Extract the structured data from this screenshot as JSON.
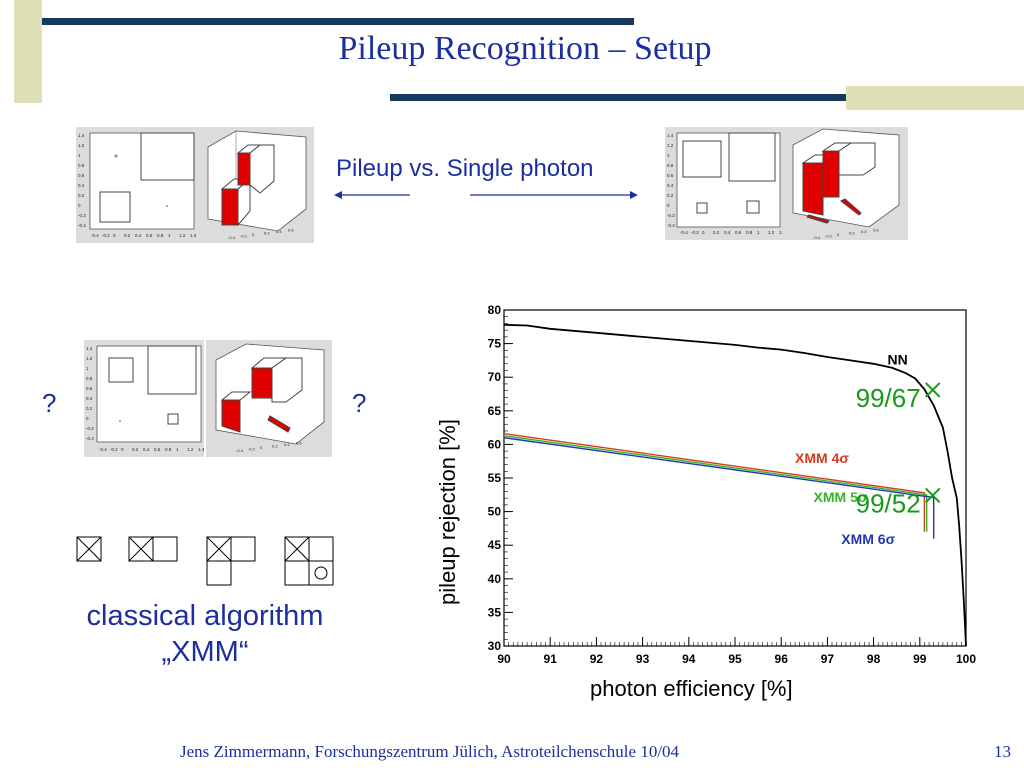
{
  "slide": {
    "title": "Pileup Recognition – Setup",
    "vs_label": "Pileup vs. Single photon",
    "question_left": "?",
    "question_right": "?",
    "classic_line1": "classical algorithm",
    "classic_line2": "„XMM“",
    "footer": "Jens Zimmermann, Forschungszentrum Jülich, Astroteilchenschule 10/04",
    "page_number": "13"
  },
  "colors": {
    "title_blue": "#1c2f9e",
    "bar_navy": "#17375e",
    "bar_khaki": "#e0e0b8"
  },
  "thumbs": {
    "x_ticks": [
      "-0.4",
      "-0.2",
      "0",
      "0.2",
      "0.4",
      "0.6",
      "0.8",
      "1",
      "1.2",
      "1.4"
    ],
    "y_ticks": [
      "1.4",
      "1.2",
      "1",
      "0.8",
      "0.6",
      "0.4",
      "0.2",
      "0",
      "-0.2",
      "-0.4"
    ]
  },
  "chart_data": {
    "type": "line",
    "xlabel": "photon efficiency [%]",
    "ylabel": "pileup rejection [%]",
    "xlim": [
      90,
      100
    ],
    "ylim": [
      30,
      80
    ],
    "x_ticks": [
      90,
      91,
      92,
      93,
      94,
      95,
      96,
      97,
      98,
      99,
      100
    ],
    "y_ticks": [
      30,
      35,
      40,
      45,
      50,
      55,
      60,
      65,
      70,
      75,
      80
    ],
    "grid": false,
    "series": [
      {
        "name": "NN",
        "color": "#000000",
        "x": [
          90,
          90.5,
          91,
          92,
          93,
          94,
          95,
          95.5,
          96,
          96.5,
          97,
          97.5,
          98,
          98.4,
          98.7,
          98.9,
          99.1,
          99.3,
          99.5,
          99.6,
          99.7,
          99.8,
          99.85,
          99.9,
          99.95,
          100
        ],
        "y": [
          77.8,
          77.7,
          77.2,
          76.6,
          76,
          75.4,
          74.8,
          74.4,
          74.1,
          73.6,
          73,
          72.5,
          72,
          71.4,
          70.6,
          69.8,
          68.2,
          65.8,
          62.5,
          59,
          55,
          52,
          48,
          43,
          37,
          30
        ]
      },
      {
        "name": "XMM 4σ",
        "color": "#d83a1c",
        "x": [
          90,
          99.1,
          99.1
        ],
        "y": [
          61.6,
          52.8,
          47
        ]
      },
      {
        "name": "XMM 5σ",
        "color": "#3cb22c",
        "x": [
          90,
          99.15,
          99.15
        ],
        "y": [
          61.3,
          52.5,
          47
        ]
      },
      {
        "name": "XMM 6σ",
        "color": "#2336b0",
        "x": [
          90,
          99.3,
          99.3
        ],
        "y": [
          61.0,
          52.1,
          46
        ]
      }
    ],
    "markers": [
      {
        "label": "99/67",
        "x": 99.15,
        "y": 68.1
      },
      {
        "label": "99/52",
        "x": 99.15,
        "y": 52.4
      }
    ],
    "series_labels": [
      {
        "text": "NN",
        "x": 98.3,
        "y": 71.9,
        "color": "#000000"
      },
      {
        "text": "XMM 4σ",
        "x": 96.3,
        "y": 57.2,
        "color": "#d83a1c"
      },
      {
        "text": "XMM 5σ",
        "x": 96.7,
        "y": 51.4,
        "color": "#3cb22c"
      },
      {
        "text": "XMM 6σ",
        "x": 97.3,
        "y": 45.2,
        "color": "#2336b0"
      }
    ]
  }
}
